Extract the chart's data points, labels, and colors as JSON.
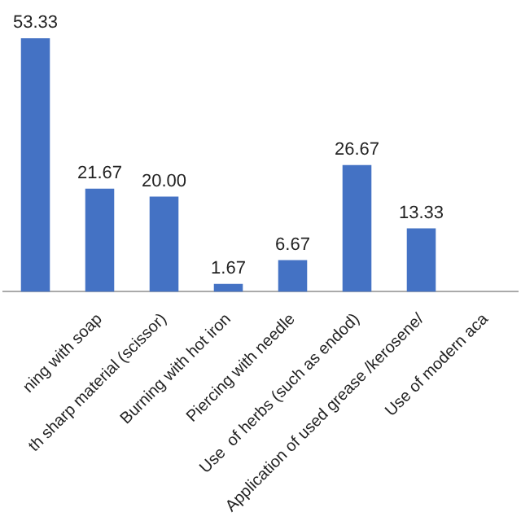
{
  "chart_data": {
    "type": "bar",
    "categories": [
      null,
      "ning with soap",
      "th sharp material (scissor)",
      "Burning with hot iron",
      "Piercing with needle",
      "Use  of herbs (such as endod)",
      "Application of used grease /kerosene/",
      "Use of modern aca"
    ],
    "values": [
      53.33,
      21.67,
      20.0,
      1.67,
      6.67,
      26.67,
      13.33,
      null
    ],
    "value_labels": [
      "53.33",
      "21.67",
      "20.00",
      "1.67",
      "6.67",
      "26.67",
      "13.33",
      null
    ],
    "color": "#4472c4",
    "grid": false,
    "legend": false
  }
}
